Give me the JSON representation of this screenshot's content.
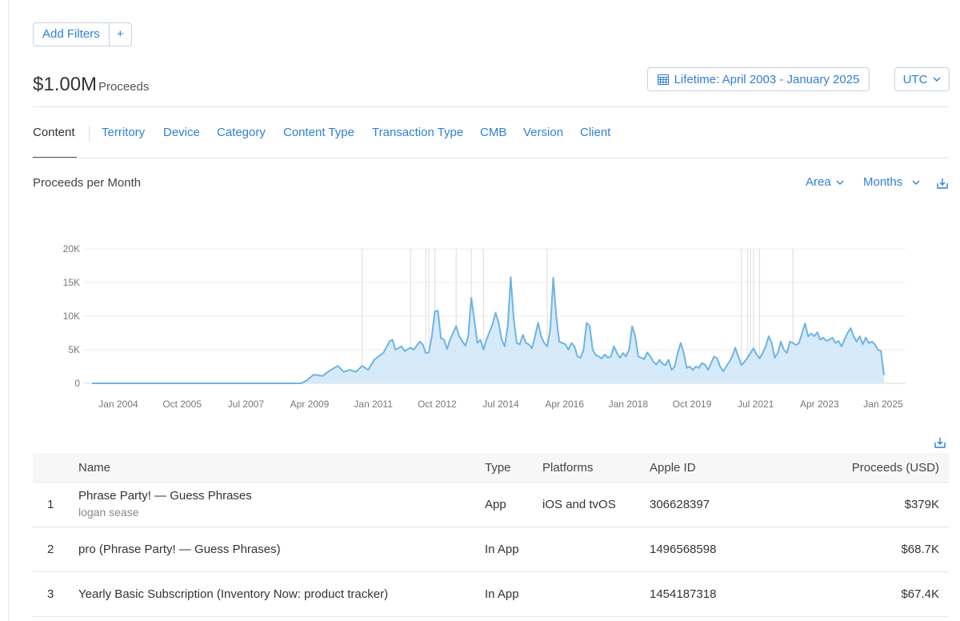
{
  "filters": {
    "add_label": "Add Filters",
    "plus_label": "+"
  },
  "summary": {
    "total": "$1.00M",
    "label": "Proceeds"
  },
  "date_range": {
    "label": "Lifetime: April 2003 - January 2025"
  },
  "timezone": {
    "label": "UTC"
  },
  "tabs": [
    {
      "label": "Content"
    },
    {
      "label": "Territory"
    },
    {
      "label": "Device"
    },
    {
      "label": "Category"
    },
    {
      "label": "Content Type"
    },
    {
      "label": "Transaction Type"
    },
    {
      "label": "CMB"
    },
    {
      "label": "Version"
    },
    {
      "label": "Client"
    }
  ],
  "chart_controls": {
    "title": "Proceeds per Month",
    "type_label": "Area",
    "period_label": "Months"
  },
  "chart_data": {
    "type": "area",
    "title": "Proceeds per Month",
    "xlabel": "",
    "ylabel": "",
    "ylim": [
      0,
      20000
    ],
    "yticks": [
      0,
      5000,
      10000,
      15000,
      20000
    ],
    "ytick_labels": [
      "0",
      "5K",
      "10K",
      "15K",
      "20K"
    ],
    "x_start": "2003-04",
    "x_end": "2025-01",
    "xtick_labels": [
      "Jan 2004",
      "Oct 2005",
      "Jul 2007",
      "Apr 2009",
      "Jan 2011",
      "Oct 2012",
      "Jul 2014",
      "Apr 2016",
      "Jan 2018",
      "Oct 2019",
      "Jul 2021",
      "Apr 2023",
      "Jan 2025"
    ],
    "grid": "horizontal",
    "legend": "none",
    "color": "#6cb4e6",
    "fill_color": "#d7eafa",
    "series": [
      {
        "points": [
          [
            "2003-04",
            0
          ],
          [
            "2009-01",
            0
          ],
          [
            "2009-03",
            500
          ],
          [
            "2009-05",
            1300
          ],
          [
            "2009-08",
            1100
          ],
          [
            "2009-10",
            1800
          ],
          [
            "2010-01",
            2600
          ],
          [
            "2010-03",
            1700
          ],
          [
            "2010-05",
            2000
          ],
          [
            "2010-07",
            1700
          ],
          [
            "2010-09",
            2600
          ],
          [
            "2010-11",
            2000
          ],
          [
            "2011-01",
            3500
          ],
          [
            "2011-03",
            4200
          ],
          [
            "2011-04",
            4500
          ],
          [
            "2011-06",
            6200
          ],
          [
            "2011-07",
            6500
          ],
          [
            "2011-08",
            5000
          ],
          [
            "2011-10",
            5500
          ],
          [
            "2011-11",
            4800
          ],
          [
            "2012-01",
            5300
          ],
          [
            "2012-02",
            5000
          ],
          [
            "2012-04",
            6200
          ],
          [
            "2012-05",
            5800
          ],
          [
            "2012-06",
            4500
          ],
          [
            "2012-07",
            4600
          ],
          [
            "2012-08",
            7000
          ],
          [
            "2012-09",
            10700
          ],
          [
            "2012-10",
            10800
          ],
          [
            "2012-11",
            6700
          ],
          [
            "2012-12",
            6500
          ],
          [
            "2013-01",
            5100
          ],
          [
            "2013-02",
            6500
          ],
          [
            "2013-03",
            7500
          ],
          [
            "2013-04",
            8500
          ],
          [
            "2013-05",
            7000
          ],
          [
            "2013-06",
            6300
          ],
          [
            "2013-07",
            5600
          ],
          [
            "2013-08",
            7000
          ],
          [
            "2013-09",
            12700
          ],
          [
            "2013-10",
            9500
          ],
          [
            "2013-11",
            6000
          ],
          [
            "2013-12",
            6500
          ],
          [
            "2014-01",
            5000
          ],
          [
            "2014-02",
            6500
          ],
          [
            "2014-04",
            8800
          ],
          [
            "2014-05",
            10500
          ],
          [
            "2014-06",
            9000
          ],
          [
            "2014-07",
            6500
          ],
          [
            "2014-08",
            5500
          ],
          [
            "2014-09",
            8500
          ],
          [
            "2014-10",
            15800
          ],
          [
            "2014-11",
            9500
          ],
          [
            "2014-12",
            6000
          ],
          [
            "2015-01",
            5800
          ],
          [
            "2015-02",
            7200
          ],
          [
            "2015-03",
            6000
          ],
          [
            "2015-04",
            5800
          ],
          [
            "2015-05",
            5200
          ],
          [
            "2015-06",
            7000
          ],
          [
            "2015-07",
            9000
          ],
          [
            "2015-08",
            7000
          ],
          [
            "2015-09",
            6000
          ],
          [
            "2015-10",
            5500
          ],
          [
            "2015-11",
            8000
          ],
          [
            "2015-12",
            15700
          ],
          [
            "2016-01",
            10000
          ],
          [
            "2016-02",
            6200
          ],
          [
            "2016-03",
            6000
          ],
          [
            "2016-04",
            5800
          ],
          [
            "2016-05",
            5000
          ],
          [
            "2016-06",
            6000
          ],
          [
            "2016-07",
            5500
          ],
          [
            "2016-08",
            4000
          ],
          [
            "2016-09",
            3800
          ],
          [
            "2016-10",
            5000
          ],
          [
            "2016-11",
            9000
          ],
          [
            "2016-12",
            8500
          ],
          [
            "2017-01",
            5000
          ],
          [
            "2017-02",
            4200
          ],
          [
            "2017-03",
            4000
          ],
          [
            "2017-04",
            3700
          ],
          [
            "2017-05",
            4300
          ],
          [
            "2017-06",
            3800
          ],
          [
            "2017-07",
            4000
          ],
          [
            "2017-08",
            5500
          ],
          [
            "2017-09",
            4500
          ],
          [
            "2017-10",
            3800
          ],
          [
            "2017-11",
            4500
          ],
          [
            "2017-12",
            4000
          ],
          [
            "2018-01",
            5000
          ],
          [
            "2018-02",
            8500
          ],
          [
            "2018-03",
            7000
          ],
          [
            "2018-04",
            4000
          ],
          [
            "2018-05",
            3800
          ],
          [
            "2018-06",
            3600
          ],
          [
            "2018-07",
            4600
          ],
          [
            "2018-08",
            4000
          ],
          [
            "2018-09",
            3200
          ],
          [
            "2018-10",
            2800
          ],
          [
            "2018-11",
            3500
          ],
          [
            "2018-12",
            2900
          ],
          [
            "2019-01",
            2700
          ],
          [
            "2019-02",
            3500
          ],
          [
            "2019-03",
            2000
          ],
          [
            "2019-04",
            2500
          ],
          [
            "2019-05",
            4500
          ],
          [
            "2019-06",
            6000
          ],
          [
            "2019-07",
            4500
          ],
          [
            "2019-08",
            2300
          ],
          [
            "2019-09",
            2500
          ],
          [
            "2019-10",
            2000
          ],
          [
            "2019-11",
            2500
          ],
          [
            "2019-12",
            2300
          ],
          [
            "2020-01",
            3000
          ],
          [
            "2020-02",
            2800
          ],
          [
            "2020-03",
            2000
          ],
          [
            "2020-04",
            3000
          ],
          [
            "2020-05",
            4000
          ],
          [
            "2020-06",
            3700
          ],
          [
            "2020-07",
            2500
          ],
          [
            "2020-08",
            1800
          ],
          [
            "2020-09",
            2500
          ],
          [
            "2020-10",
            3200
          ],
          [
            "2020-11",
            4000
          ],
          [
            "2020-12",
            5300
          ],
          [
            "2021-01",
            4000
          ],
          [
            "2021-02",
            2700
          ],
          [
            "2021-03",
            3200
          ],
          [
            "2021-04",
            3800
          ],
          [
            "2021-05",
            4500
          ],
          [
            "2021-06",
            5200
          ],
          [
            "2021-07",
            4300
          ],
          [
            "2021-08",
            3700
          ],
          [
            "2021-09",
            4500
          ],
          [
            "2021-10",
            5500
          ],
          [
            "2021-11",
            7000
          ],
          [
            "2021-12",
            6000
          ],
          [
            "2022-01",
            3800
          ],
          [
            "2022-02",
            4500
          ],
          [
            "2022-03",
            6200
          ],
          [
            "2022-04",
            5000
          ],
          [
            "2022-05",
            4500
          ],
          [
            "2022-06",
            6200
          ],
          [
            "2022-07",
            6000
          ],
          [
            "2022-08",
            5700
          ],
          [
            "2022-09",
            6000
          ],
          [
            "2022-10",
            7500
          ],
          [
            "2022-11",
            8900
          ],
          [
            "2022-12",
            7000
          ],
          [
            "2023-01",
            7400
          ],
          [
            "2023-02",
            7000
          ],
          [
            "2023-03",
            7600
          ],
          [
            "2023-04",
            6500
          ],
          [
            "2023-05",
            6800
          ],
          [
            "2023-06",
            6300
          ],
          [
            "2023-07",
            6500
          ],
          [
            "2023-08",
            6800
          ],
          [
            "2023-09",
            6000
          ],
          [
            "2023-10",
            6300
          ],
          [
            "2023-11",
            5500
          ],
          [
            "2023-12",
            6500
          ],
          [
            "2024-01",
            7500
          ],
          [
            "2024-02",
            8200
          ],
          [
            "2024-03",
            7000
          ],
          [
            "2024-04",
            6200
          ],
          [
            "2024-05",
            7000
          ],
          [
            "2024-06",
            5800
          ],
          [
            "2024-07",
            6800
          ],
          [
            "2024-08",
            6000
          ],
          [
            "2024-09",
            6200
          ],
          [
            "2024-10",
            5800
          ],
          [
            "2024-11",
            5000
          ],
          [
            "2024-12",
            4800
          ],
          [
            "2025-01",
            1200
          ]
        ]
      }
    ],
    "annotation_dates": [
      "2010-09",
      "2012-01",
      "2012-06",
      "2012-07",
      "2012-09",
      "2013-04",
      "2013-09",
      "2014-01",
      "2015-10",
      "2021-02",
      "2021-04",
      "2021-05",
      "2021-06",
      "2021-08",
      "2022-07"
    ]
  },
  "table": {
    "headers": {
      "rank": "",
      "name": "Name",
      "type": "Type",
      "platforms": "Platforms",
      "apple_id": "Apple ID",
      "proceeds": "Proceeds (USD)"
    },
    "rows": [
      {
        "rank": "1",
        "name": "Phrase Party! — Guess Phrases",
        "developer": "logan sease",
        "type": "App",
        "platforms": "iOS and tvOS",
        "apple_id": "306628397",
        "proceeds": "$379K"
      },
      {
        "rank": "2",
        "name": "pro (Phrase Party! — Guess Phrases)",
        "developer": "",
        "type": "In App",
        "platforms": "",
        "apple_id": "1496568598",
        "proceeds": "$68.7K"
      },
      {
        "rank": "3",
        "name": "Yearly Basic Subscription (Inventory Now: product tracker)",
        "developer": "",
        "type": "In App",
        "platforms": "",
        "apple_id": "1454187318",
        "proceeds": "$67.4K"
      }
    ]
  }
}
